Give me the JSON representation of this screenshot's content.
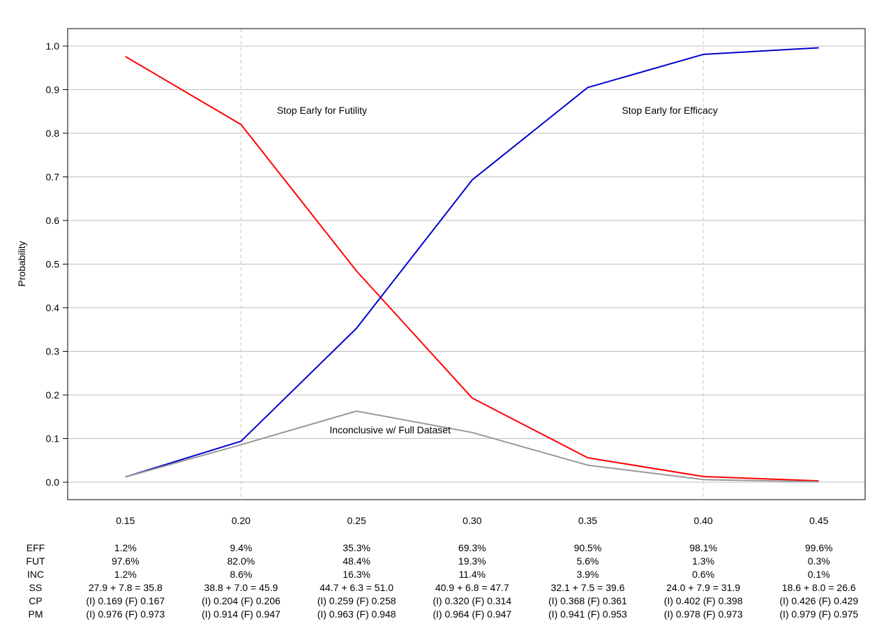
{
  "chart_data": {
    "type": "line",
    "ylabel": "Probability",
    "xlim": [
      0.125,
      0.47
    ],
    "ylim": [
      -0.04,
      1.04
    ],
    "grid": true,
    "x": [
      0.15,
      0.2,
      0.25,
      0.3,
      0.35,
      0.4,
      0.45
    ],
    "x_tick_labels": [
      "0.15",
      "0.20",
      "0.25",
      "0.30",
      "0.35",
      "0.40",
      "0.45"
    ],
    "y_ticks": [
      0.0,
      0.1,
      0.2,
      0.3,
      0.4,
      0.5,
      0.6,
      0.7,
      0.8,
      0.9,
      1.0
    ],
    "y_tick_labels": [
      "0.0",
      "0.1",
      "0.2",
      "0.3",
      "0.4",
      "0.5",
      "0.6",
      "0.7",
      "0.8",
      "0.9",
      "1.0"
    ],
    "vertical_reference_lines": [
      0.2,
      0.4
    ],
    "series": [
      {
        "values": [
          0.976,
          0.82,
          0.484,
          0.193,
          0.056,
          0.013,
          0.003
        ],
        "color": "#ff0000"
      },
      {
        "values": [
          0.012,
          0.094,
          0.353,
          0.693,
          0.905,
          0.981,
          0.996
        ],
        "color": "#0000cc"
      },
      {
        "values": [
          0.012,
          0.086,
          0.163,
          0.114,
          0.039,
          0.006,
          0.001
        ],
        "color": "#999999"
      }
    ],
    "annotations": [
      {
        "text": "Stop Early for Futility",
        "x": 0.235,
        "y": 0.845
      },
      {
        "text": "Stop Early for Efficacy",
        "x": 0.3855,
        "y": 0.845
      },
      {
        "text": "Inconclusive w/ Full Dataset",
        "x": 0.2645,
        "y": 0.112
      }
    ],
    "table": {
      "row_labels": [
        "EFF",
        "FUT",
        "INC",
        "SS",
        "CP",
        "PM"
      ],
      "rows": [
        [
          "1.2%",
          "9.4%",
          "35.3%",
          "69.3%",
          "90.5%",
          "98.1%",
          "99.6%"
        ],
        [
          "97.6%",
          "82.0%",
          "48.4%",
          "19.3%",
          "5.6%",
          "1.3%",
          "0.3%"
        ],
        [
          "1.2%",
          "8.6%",
          "16.3%",
          "11.4%",
          "3.9%",
          "0.6%",
          "0.1%"
        ],
        [
          "27.9 + 7.8 = 35.8",
          "38.8 + 7.0 = 45.9",
          "44.7 + 6.3 = 51.0",
          "40.9 + 6.8 = 47.7",
          "32.1 + 7.5 = 39.6",
          "24.0 + 7.9 = 31.9",
          "18.6 + 8.0 = 26.6"
        ],
        [
          "(I) 0.169 (F) 0.167",
          "(I) 0.204 (F) 0.206",
          "(I) 0.259 (F) 0.258",
          "(I) 0.320 (F) 0.314",
          "(I) 0.368 (F) 0.361",
          "(I) 0.402 (F) 0.398",
          "(I) 0.426 (F) 0.429"
        ],
        [
          "(I) 0.976 (F) 0.973",
          "(I) 0.914 (F) 0.947",
          "(I) 0.963 (F) 0.948",
          "(I) 0.964 (F) 0.947",
          "(I) 0.941 (F) 0.953",
          "(I) 0.978 (F) 0.973",
          "(I) 0.979 (F) 0.975"
        ]
      ]
    }
  }
}
